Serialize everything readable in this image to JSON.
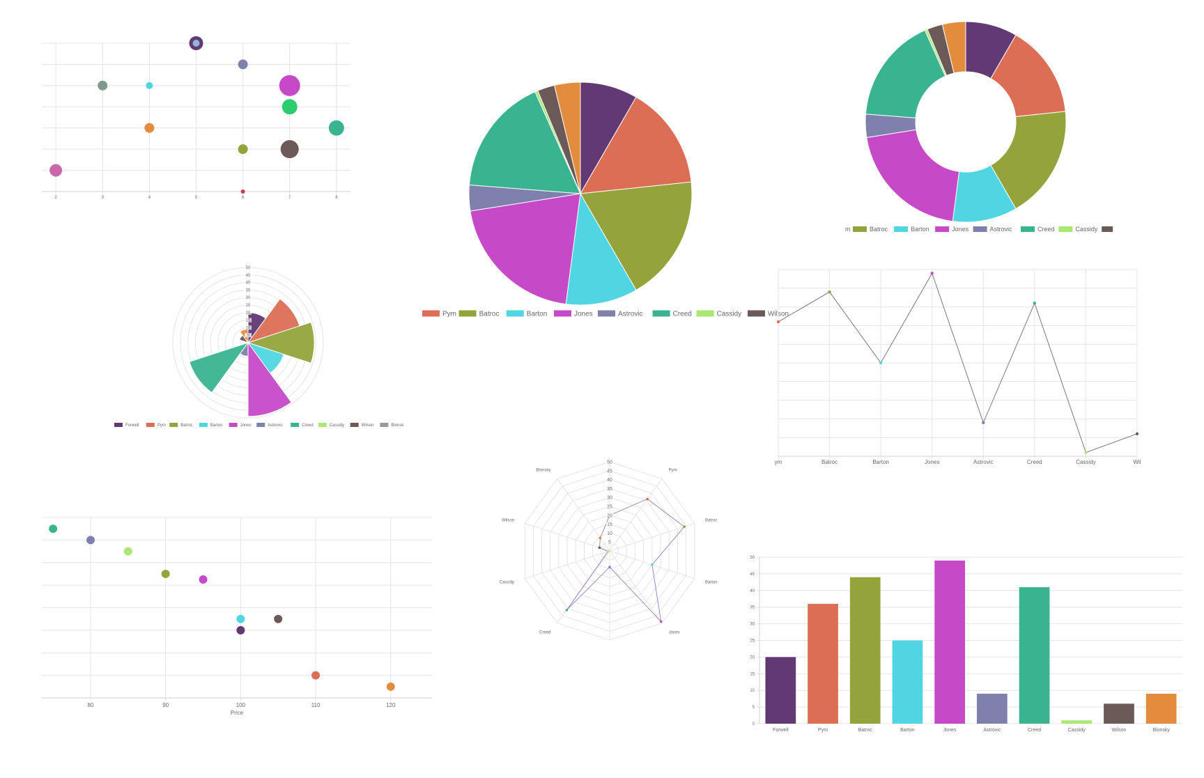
{
  "palette": {
    "Forwell": "#633974",
    "Pym": "#dc6e55",
    "Batroc": "#94a43b",
    "Barton": "#4fd6e2",
    "Jones": "#c64ac8",
    "Astrovic": "#8080ad",
    "Creed": "#3ab391",
    "Cassidy": "#aae775",
    "Wilson": "#6b5a58",
    "Blonsky": "#e38c3e"
  },
  "chart_data": [
    {
      "id": "bubble",
      "type": "scatter",
      "x_ticks": [
        "2",
        "3",
        "4",
        "5",
        "6",
        "7",
        "8"
      ],
      "xlim": [
        1.7,
        8.3
      ],
      "ylim": [
        0,
        7
      ],
      "grid": true,
      "points": [
        {
          "x": 5,
          "y": 7,
          "r": 10,
          "color": "#633974"
        },
        {
          "x": 5,
          "y": 7,
          "r": 5,
          "color": "#8fb6d8"
        },
        {
          "x": 6,
          "y": 6,
          "r": 7,
          "color": "#8080ad"
        },
        {
          "x": 3,
          "y": 5,
          "r": 7,
          "color": "#7f9a8c"
        },
        {
          "x": 4,
          "y": 5,
          "r": 5,
          "color": "#4fd6e2"
        },
        {
          "x": 7,
          "y": 5,
          "r": 15,
          "color": "#c64ac8"
        },
        {
          "x": 7,
          "y": 4,
          "r": 11,
          "color": "#2ecc71"
        },
        {
          "x": 4,
          "y": 3,
          "r": 7,
          "color": "#e38c3e"
        },
        {
          "x": 8,
          "y": 3,
          "r": 11,
          "color": "#3ab391"
        },
        {
          "x": 6,
          "y": 2,
          "r": 7,
          "color": "#94a43b"
        },
        {
          "x": 7,
          "y": 2,
          "r": 13,
          "color": "#6b5a58"
        },
        {
          "x": 2,
          "y": 1,
          "r": 9,
          "color": "#c868aa"
        },
        {
          "x": 6,
          "y": 0,
          "r": 3,
          "color": "#c43f52"
        }
      ]
    },
    {
      "id": "pie",
      "type": "pie",
      "categories": [
        "Forwell",
        "Pym",
        "Batroc",
        "Barton",
        "Jones",
        "Astrovic",
        "Creed",
        "Cassidy",
        "Wilson",
        "Blonsky"
      ],
      "values": [
        20,
        36,
        44,
        25,
        49,
        9,
        41,
        1,
        6,
        9
      ],
      "legend": [
        "Pym",
        "Batroc",
        "Barton",
        "Jones",
        "Astrovic",
        "Creed",
        "Cassidy",
        "Wilson"
      ],
      "legend_position": "bottom"
    },
    {
      "id": "doughnut",
      "type": "pie",
      "categories": [
        "Forwell",
        "Pym",
        "Batroc",
        "Barton",
        "Jones",
        "Astrovic",
        "Creed",
        "Cassidy",
        "Wilson",
        "Blonsky"
      ],
      "values": [
        20,
        36,
        44,
        25,
        49,
        9,
        41,
        1,
        6,
        9
      ],
      "legend_partial_label": "m",
      "legend": [
        "Batroc",
        "Barton",
        "Jones",
        "Astrovic",
        "Creed",
        "Cassidy"
      ],
      "legend_trailing_swatch": "Wilson",
      "legend_position": "top"
    },
    {
      "id": "polar",
      "type": "pie",
      "categories": [
        "Forwell",
        "Pym",
        "Batroc",
        "Barton",
        "Jones",
        "Astrovic",
        "Creed",
        "Cassidy",
        "Wilson",
        "Blonsky"
      ],
      "values": [
        20,
        36,
        44,
        25,
        49,
        9,
        41,
        1,
        6,
        9
      ],
      "r_ticks": [
        "5",
        "10",
        "15",
        "20",
        "25",
        "30",
        "35",
        "40",
        "45",
        "50"
      ],
      "rlim": [
        0,
        50
      ],
      "legend": [
        "Forwell",
        "Pym",
        "Batroc",
        "Barton",
        "Jones",
        "Astrovic",
        "Creed",
        "Cassidy",
        "Wilson",
        "Blonsk"
      ],
      "legend_position": "bottom"
    },
    {
      "id": "line",
      "type": "line",
      "categories": [
        "ym",
        "Batroc",
        "Barton",
        "Jones",
        "Astrovic",
        "Creed",
        "Cassidy",
        "Wil"
      ],
      "values": [
        36,
        44,
        25,
        49,
        9,
        41,
        1,
        6
      ],
      "ylim": [
        0,
        50
      ],
      "grid": true
    },
    {
      "id": "radar",
      "type": "line",
      "categories": [
        "Pym",
        "Batroc",
        "Barton",
        "Jones",
        "Astrovic",
        "Creed",
        "Cassidy",
        "Wilson",
        "Blonsky",
        "Forwell"
      ],
      "labels_shown": [
        "Pym",
        "Batroc",
        "Barton",
        "Jones",
        "Creed",
        "Cassidy",
        "Wilson",
        "Blonsky"
      ],
      "values": [
        36,
        44,
        25,
        49,
        9,
        41,
        1,
        6,
        9,
        20
      ],
      "r_ticks": [
        "5",
        "10",
        "15",
        "20",
        "25",
        "30",
        "35",
        "40",
        "45",
        "50"
      ],
      "rlim": [
        0,
        50
      ]
    },
    {
      "id": "price",
      "type": "scatter",
      "xlabel": "Price",
      "x_ticks": [
        "80",
        "90",
        "100",
        "110",
        "120"
      ],
      "xlim": [
        73.5,
        125.5
      ],
      "ylim": [
        0,
        16
      ],
      "grid": true,
      "points": [
        {
          "x": 75,
          "y": 15,
          "color": "#3ab391"
        },
        {
          "x": 80,
          "y": 14,
          "color": "#8080ad"
        },
        {
          "x": 85,
          "y": 13,
          "color": "#aae775"
        },
        {
          "x": 90,
          "y": 11,
          "color": "#94a43b"
        },
        {
          "x": 95,
          "y": 10.5,
          "color": "#c64ac8"
        },
        {
          "x": 100,
          "y": 7,
          "color": "#4fd6e2"
        },
        {
          "x": 105,
          "y": 7,
          "color": "#6b5a58"
        },
        {
          "x": 100,
          "y": 6,
          "color": "#633974"
        },
        {
          "x": 110,
          "y": 2,
          "color": "#dc6e55"
        },
        {
          "x": 120,
          "y": 1,
          "color": "#e38c3e"
        }
      ]
    },
    {
      "id": "bar",
      "type": "bar",
      "categories": [
        "Forwell",
        "Pym",
        "Batroc",
        "Barton",
        "Jones",
        "Astrovic",
        "Creed",
        "Cassidy",
        "Wilson",
        "Blonsky"
      ],
      "values": [
        20,
        36,
        44,
        25,
        49,
        9,
        41,
        1,
        6,
        9
      ],
      "y_ticks": [
        "0",
        "5",
        "10",
        "15",
        "20",
        "25",
        "30",
        "35",
        "40",
        "45",
        "50"
      ],
      "ylim": [
        0,
        50
      ],
      "grid": true
    }
  ]
}
